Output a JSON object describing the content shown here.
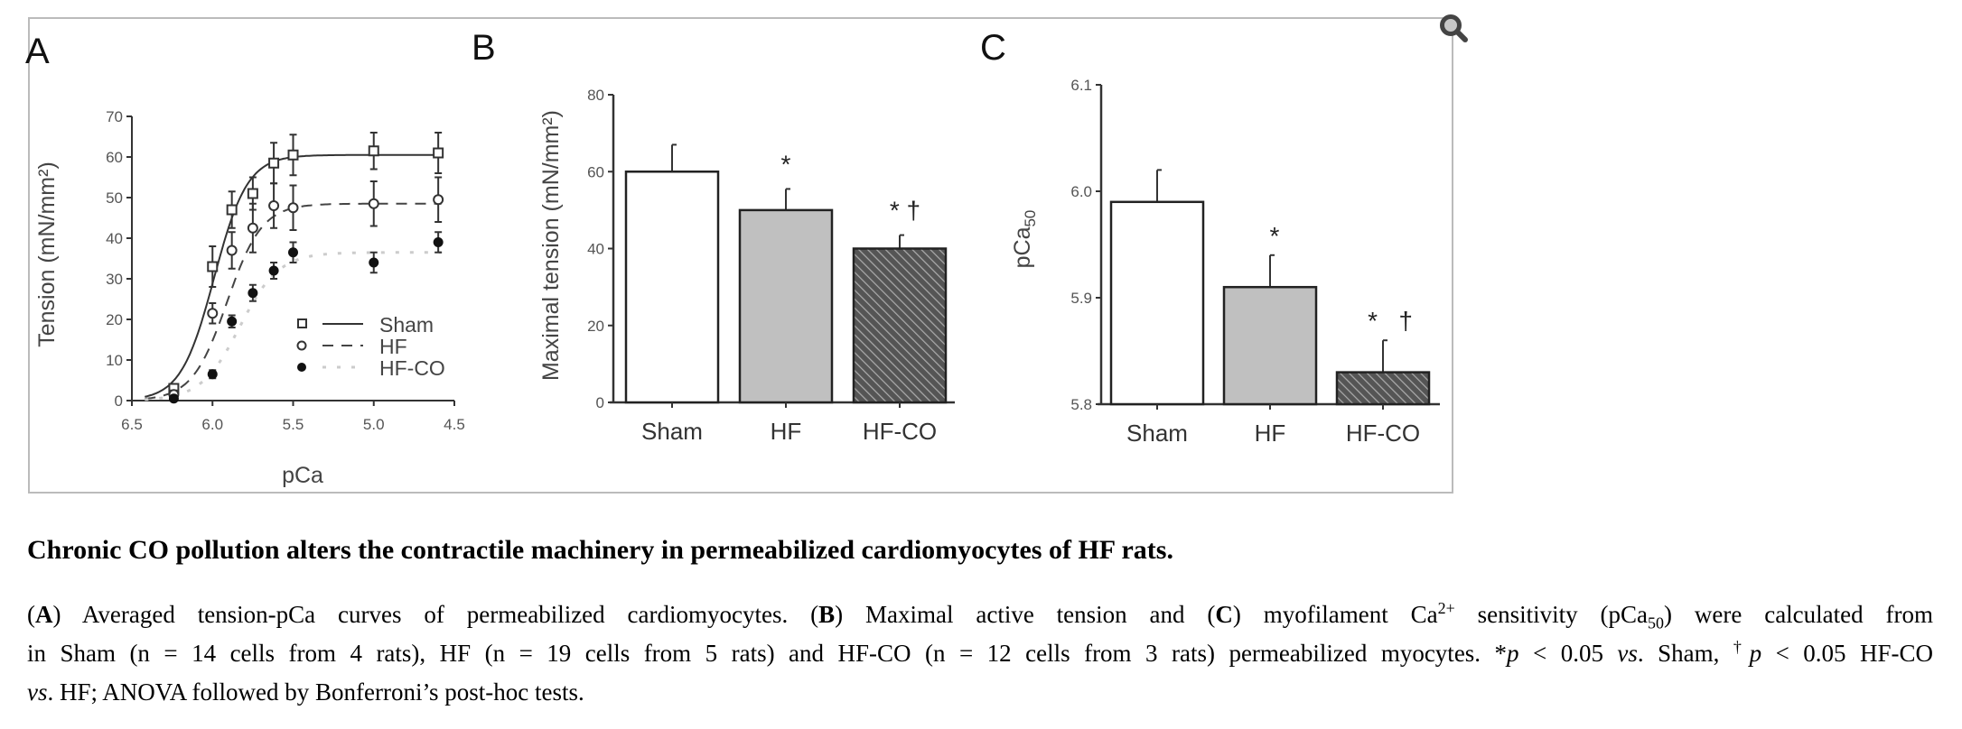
{
  "figure": {
    "zoom_icon": "magnifier-icon",
    "colors": {
      "sham_fill": "#ffffff",
      "hf_fill": "#c0c0c0",
      "hfco_fill": "#555555",
      "hatch": "#aaaaaa",
      "axis": "#333333"
    }
  },
  "chart_data": [
    {
      "type": "line",
      "panel_label": "A",
      "xlabel": "pCa",
      "ylabel": "Tension (mN/mm²)",
      "xlim": [
        6.5,
        4.5
      ],
      "ylim": [
        0,
        70
      ],
      "xticks": [
        "6.5",
        "6.0",
        "5.5",
        "5.0",
        "4.5"
      ],
      "yticks": [
        "0",
        "10",
        "20",
        "30",
        "40",
        "50",
        "60",
        "70"
      ],
      "x": [
        6.24,
        6.0,
        5.88,
        5.75,
        5.62,
        5.5,
        5.0,
        4.6
      ],
      "legend_position": "bottom-right",
      "series": [
        {
          "name": "Sham",
          "marker": "open-square",
          "line": "solid",
          "values": [
            3,
            33,
            47,
            51,
            58.5,
            60.5,
            61.5,
            61
          ],
          "errors": [
            1,
            5,
            4.5,
            4,
            5,
            5,
            4.5,
            5
          ],
          "fit": {
            "max": 60.5,
            "pCa50": 5.99,
            "nH": 4.2
          }
        },
        {
          "name": "HF",
          "marker": "open-circle",
          "line": "dashed",
          "values": [
            1.5,
            21.5,
            37,
            42.5,
            48,
            47.5,
            48.5,
            49.5
          ],
          "errors": [
            1,
            2.5,
            4.5,
            6,
            5.5,
            5.5,
            5.5,
            5.5
          ],
          "fit": {
            "max": 48.5,
            "pCa50": 5.91,
            "nH": 4.0
          }
        },
        {
          "name": "HF-CO",
          "marker": "filled-circle",
          "line": "dotted",
          "values": [
            0.5,
            6.5,
            19.5,
            26.5,
            32,
            36.5,
            34,
            39
          ],
          "errors": [
            0.5,
            1,
            1.5,
            2,
            2,
            2.5,
            2.5,
            2.5
          ],
          "fit": {
            "max": 36.5,
            "pCa50": 5.83,
            "nH": 3.6
          }
        }
      ]
    },
    {
      "type": "bar",
      "panel_label": "B",
      "ylabel": "Maximal tension (mN/mm²)",
      "ylim": [
        0,
        80
      ],
      "yticks": [
        "0",
        "20",
        "40",
        "60",
        "80"
      ],
      "categories": [
        "Sham",
        "HF",
        "HF-CO"
      ],
      "values": [
        60,
        50,
        40
      ],
      "errors": [
        7,
        5.5,
        3.5
      ],
      "annotations": [
        "",
        "*",
        "* †"
      ]
    },
    {
      "type": "bar",
      "panel_label": "C",
      "ylabel": "pCa",
      "ylabel_sub": "50",
      "ylim": [
        5.8,
        6.1
      ],
      "yticks": [
        "5.8",
        "5.9",
        "6.0",
        "6.1"
      ],
      "categories": [
        "Sham",
        "HF",
        "HF-CO"
      ],
      "values": [
        5.99,
        5.91,
        5.83
      ],
      "errors": [
        0.03,
        0.03,
        0.03
      ],
      "annotations": [
        "",
        "*",
        "*   †"
      ]
    }
  ],
  "caption": {
    "title": "Chronic CO pollution alters the contractile machinery in permeabilized cardiomyocytes of HF rats.",
    "lines": [
      [
        {
          "t": "(",
          "s": ""
        },
        {
          "t": "A",
          "s": "b"
        },
        {
          "t": ") Averaged tension-pCa curves of permeabilized cardiomyocytes. (",
          "s": ""
        },
        {
          "t": "B",
          "s": "b"
        },
        {
          "t": ") Maximal active tension and (",
          "s": ""
        },
        {
          "t": "C",
          "s": "b"
        },
        {
          "t": ") myofilament Ca",
          "s": ""
        },
        {
          "t": "2+",
          "s": "sup"
        },
        {
          "t": " sensitivity (pCa",
          "s": ""
        },
        {
          "t": "50",
          "s": "sub"
        },
        {
          "t": ") were calculated from",
          "s": ""
        }
      ],
      [
        {
          "t": "in Sham (n = 14 cells from 4 rats), HF (n = 19 cells from 5 rats) and HF-CO (n = 12 cells from 3 rats) permeabilized myocytes. *",
          "s": ""
        },
        {
          "t": "p",
          "s": "i"
        },
        {
          "t": " < 0.05 ",
          "s": ""
        },
        {
          "t": "vs",
          "s": "i"
        },
        {
          "t": ". Sham, ",
          "s": ""
        },
        {
          "t": "†",
          "s": "sup"
        },
        {
          "t": "p",
          "s": "i"
        },
        {
          "t": " < 0.05 HF-CO",
          "s": ""
        }
      ],
      [
        {
          "t": "vs",
          "s": "i"
        },
        {
          "t": ". HF; ANOVA followed by Bonferroni’s post-hoc tests.",
          "s": ""
        }
      ]
    ]
  }
}
